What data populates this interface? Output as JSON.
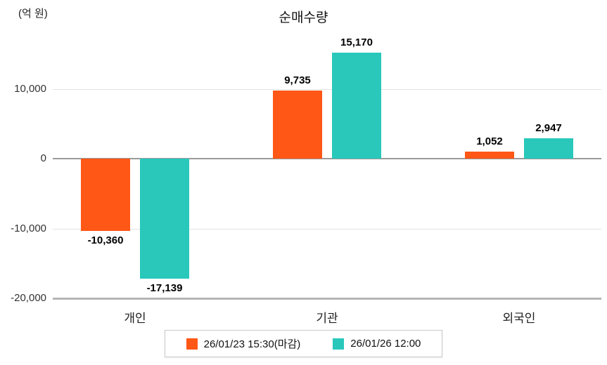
{
  "chart_data": {
    "type": "bar",
    "title": "순매수량",
    "ylabel": "(억 원)",
    "categories": [
      "개인",
      "기관",
      "외국인"
    ],
    "series": [
      {
        "name": "26/01/23 15:30(마감)",
        "color": "#ff5716",
        "values": [
          -10360,
          9735,
          1052
        ]
      },
      {
        "name": "26/01/26 12:00",
        "color": "#29c8bb",
        "values": [
          -17139,
          15170,
          2947
        ]
      }
    ],
    "ylim": [
      -20000,
      17200
    ],
    "yticks": [
      10000,
      0,
      -10000,
      -20000
    ],
    "grid": true,
    "legend_position": "bottom",
    "value_labels": [
      "-10,360",
      "9,735",
      "1,052",
      "-17,139",
      "15,170",
      "2,947"
    ],
    "ytick_labels": [
      "10,000",
      "0",
      "-10,000",
      "-20,000"
    ]
  }
}
